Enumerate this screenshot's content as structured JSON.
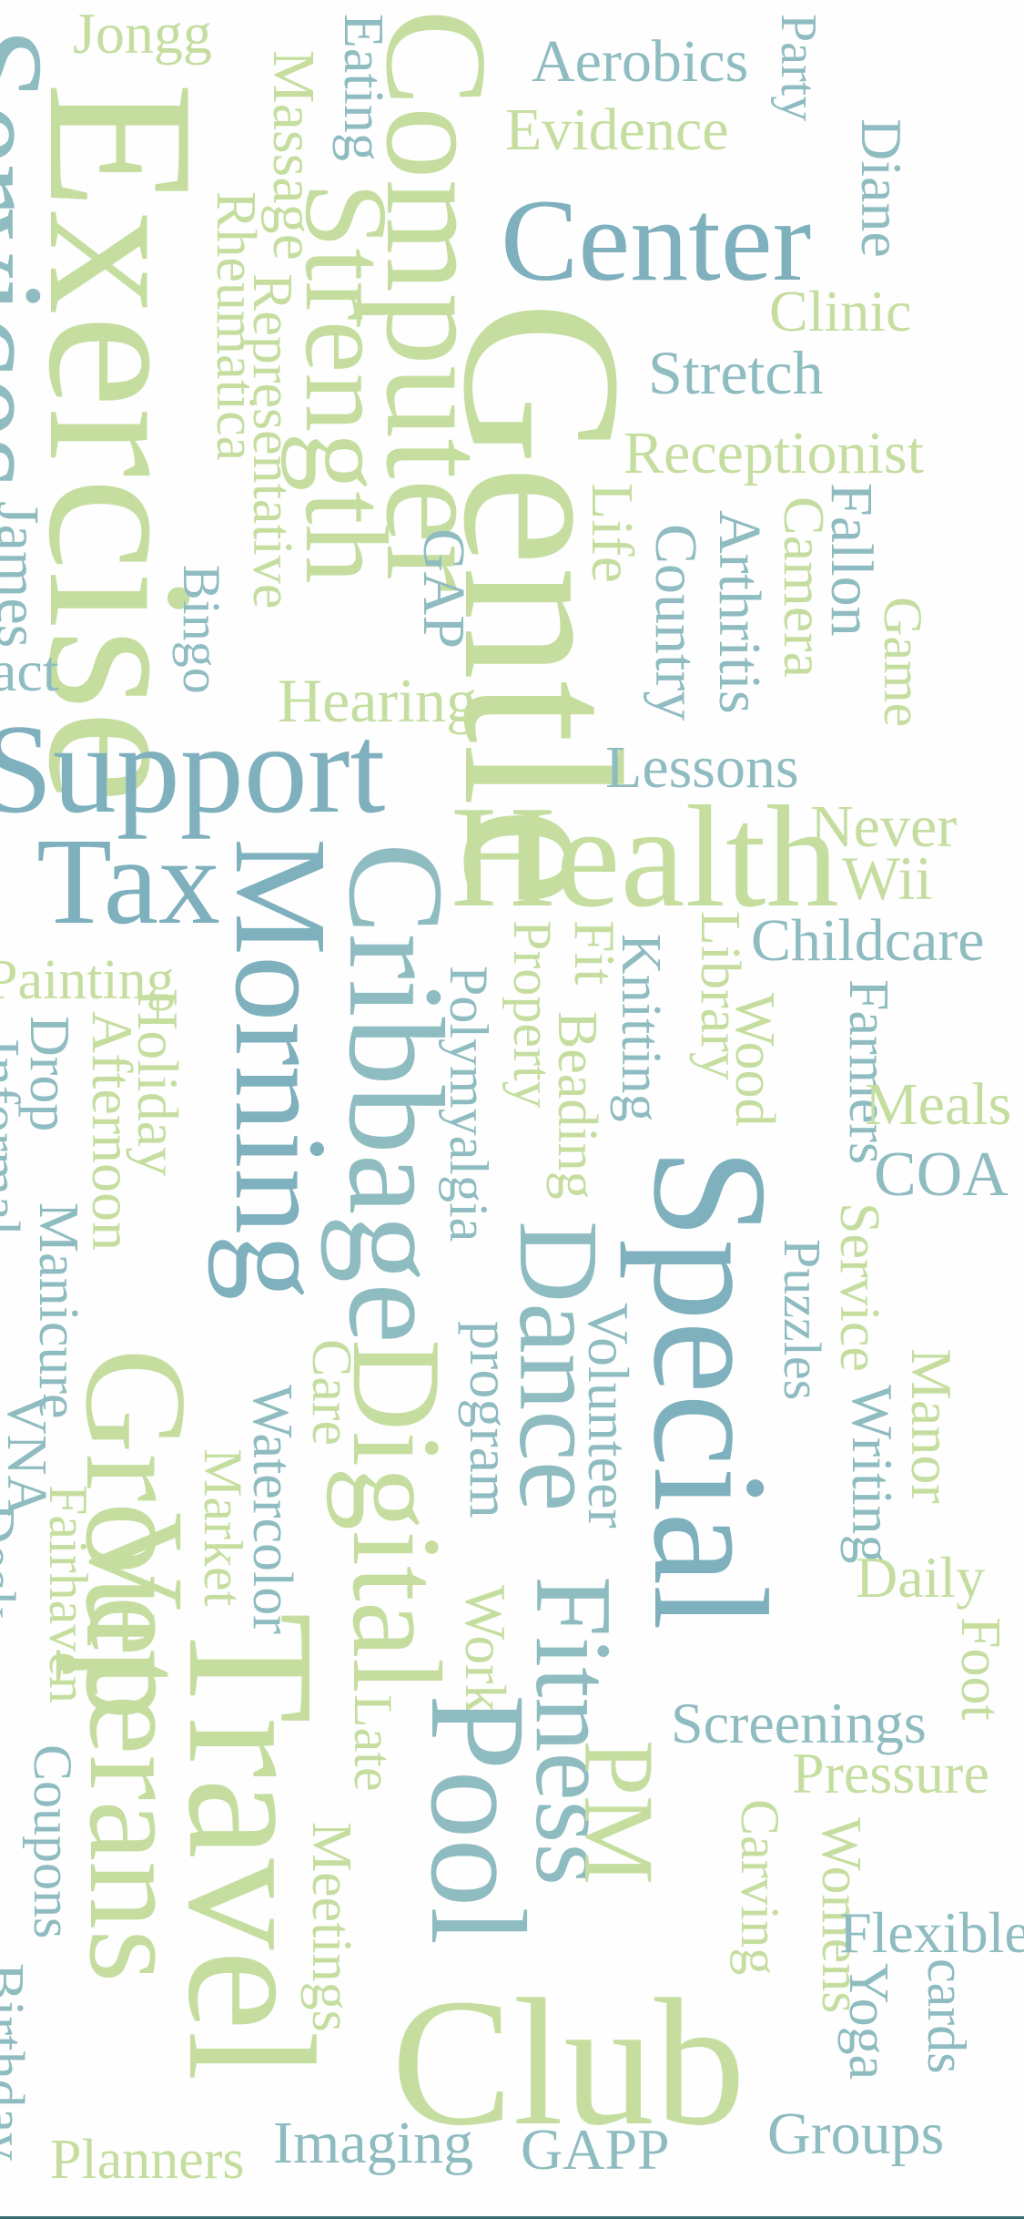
{
  "palette": {
    "green": "#c5dea0",
    "lightgreen": "#d3e8b3",
    "teal": "#8fbcc0",
    "blue": "#7fb0bd",
    "bluegreen": "#a6cdb9",
    "edge": "#3a6a70"
  },
  "words": [
    {
      "text": "Jongg",
      "color": "green"
    },
    {
      "text": "Aerobics",
      "color": "teal"
    },
    {
      "text": "Party",
      "color": "teal"
    },
    {
      "text": "Eating",
      "color": "teal"
    },
    {
      "text": "Massage",
      "color": "green"
    },
    {
      "text": "Computer",
      "color": "green"
    },
    {
      "text": "Evidence",
      "color": "green"
    },
    {
      "text": "Diane",
      "color": "teal"
    },
    {
      "text": "Exercise",
      "color": "green"
    },
    {
      "text": "Services",
      "color": "teal"
    },
    {
      "text": "Center",
      "color": "blue"
    },
    {
      "text": "Strength",
      "color": "green"
    },
    {
      "text": "Rheumatica",
      "color": "green"
    },
    {
      "text": "Representative",
      "color": "green"
    },
    {
      "text": "Clinic",
      "color": "green"
    },
    {
      "text": "Gentle",
      "color": "green"
    },
    {
      "text": "Stretch",
      "color": "teal"
    },
    {
      "text": "Receptionist",
      "color": "green"
    },
    {
      "text": "GAP",
      "color": "teal"
    },
    {
      "text": "Fallon",
      "color": "teal"
    },
    {
      "text": "Camera",
      "color": "green"
    },
    {
      "text": "Arthritis",
      "color": "teal"
    },
    {
      "text": "Life",
      "color": "green"
    },
    {
      "text": "Country",
      "color": "teal"
    },
    {
      "text": "Game",
      "color": "green"
    },
    {
      "text": "James",
      "color": "teal"
    },
    {
      "text": "Bingo",
      "color": "teal"
    },
    {
      "text": "act",
      "color": "teal"
    },
    {
      "text": "Hearing",
      "color": "green"
    },
    {
      "text": "Support",
      "color": "blue"
    },
    {
      "text": "Lessons",
      "color": "teal"
    },
    {
      "text": "Health",
      "color": "green"
    },
    {
      "text": "Never",
      "color": "green"
    },
    {
      "text": "Wii",
      "color": "green"
    },
    {
      "text": "Tax",
      "color": "blue"
    },
    {
      "text": "Morning",
      "color": "blue"
    },
    {
      "text": "Cribbage",
      "color": "teal"
    },
    {
      "text": "Childcare",
      "color": "teal"
    },
    {
      "text": "Painting",
      "color": "green"
    },
    {
      "text": "Fit",
      "color": "green"
    },
    {
      "text": "Knitting",
      "color": "teal"
    },
    {
      "text": "Library",
      "color": "green"
    },
    {
      "text": "Property",
      "color": "green"
    },
    {
      "text": "Polymyalgia",
      "color": "teal"
    },
    {
      "text": "Beading",
      "color": "green"
    },
    {
      "text": "Wood",
      "color": "green"
    },
    {
      "text": "Farmers",
      "color": "teal"
    },
    {
      "text": "Meals",
      "color": "green"
    },
    {
      "text": "COA",
      "color": "teal"
    },
    {
      "text": "Holiday",
      "color": "green"
    },
    {
      "text": "Afternoon",
      "color": "green"
    },
    {
      "text": "Drop",
      "color": "teal"
    },
    {
      "text": "Informal",
      "color": "teal"
    },
    {
      "text": "Special",
      "color": "blue"
    },
    {
      "text": "Dance",
      "color": "teal"
    },
    {
      "text": "Puzzles",
      "color": "teal"
    },
    {
      "text": "Service",
      "color": "green"
    },
    {
      "text": "Manicure",
      "color": "teal"
    },
    {
      "text": "Digital",
      "color": "green"
    },
    {
      "text": "program",
      "color": "teal"
    },
    {
      "text": "Volunteer",
      "color": "teal"
    },
    {
      "text": "Writing",
      "color": "teal"
    },
    {
      "text": "Manor",
      "color": "green"
    },
    {
      "text": "Care",
      "color": "green"
    },
    {
      "text": "Work",
      "color": "green"
    },
    {
      "text": "Group",
      "color": "green"
    },
    {
      "text": "Fairhaven",
      "color": "green"
    },
    {
      "text": "Market",
      "color": "green"
    },
    {
      "text": "Watercolor",
      "color": "teal"
    },
    {
      "text": "Fitness",
      "color": "teal"
    },
    {
      "text": "Daily",
      "color": "green"
    },
    {
      "text": "VNA",
      "color": "teal"
    },
    {
      "text": "Foot",
      "color": "green"
    },
    {
      "text": "Travel",
      "color": "green"
    },
    {
      "text": "Veterans",
      "color": "green"
    },
    {
      "text": "Late",
      "color": "green"
    },
    {
      "text": "Pool",
      "color": "teal"
    },
    {
      "text": "PM",
      "color": "green"
    },
    {
      "text": "Screenings",
      "color": "teal"
    },
    {
      "text": "Pressure",
      "color": "green"
    },
    {
      "text": "Coupons",
      "color": "teal"
    },
    {
      "text": "Desk",
      "color": "teal"
    },
    {
      "text": "Carving",
      "color": "green"
    },
    {
      "text": "Womens",
      "color": "green"
    },
    {
      "text": "Meetings",
      "color": "green"
    },
    {
      "text": "Flexible",
      "color": "teal"
    },
    {
      "text": "Club",
      "color": "green"
    },
    {
      "text": "Yoga",
      "color": "teal"
    },
    {
      "text": "cards",
      "color": "teal"
    },
    {
      "text": "Birthday",
      "color": "teal"
    },
    {
      "text": "Planners",
      "color": "green"
    },
    {
      "text": "Imaging",
      "color": "teal"
    },
    {
      "text": "GAPP",
      "color": "teal"
    },
    {
      "text": "Groups",
      "color": "teal"
    }
  ]
}
